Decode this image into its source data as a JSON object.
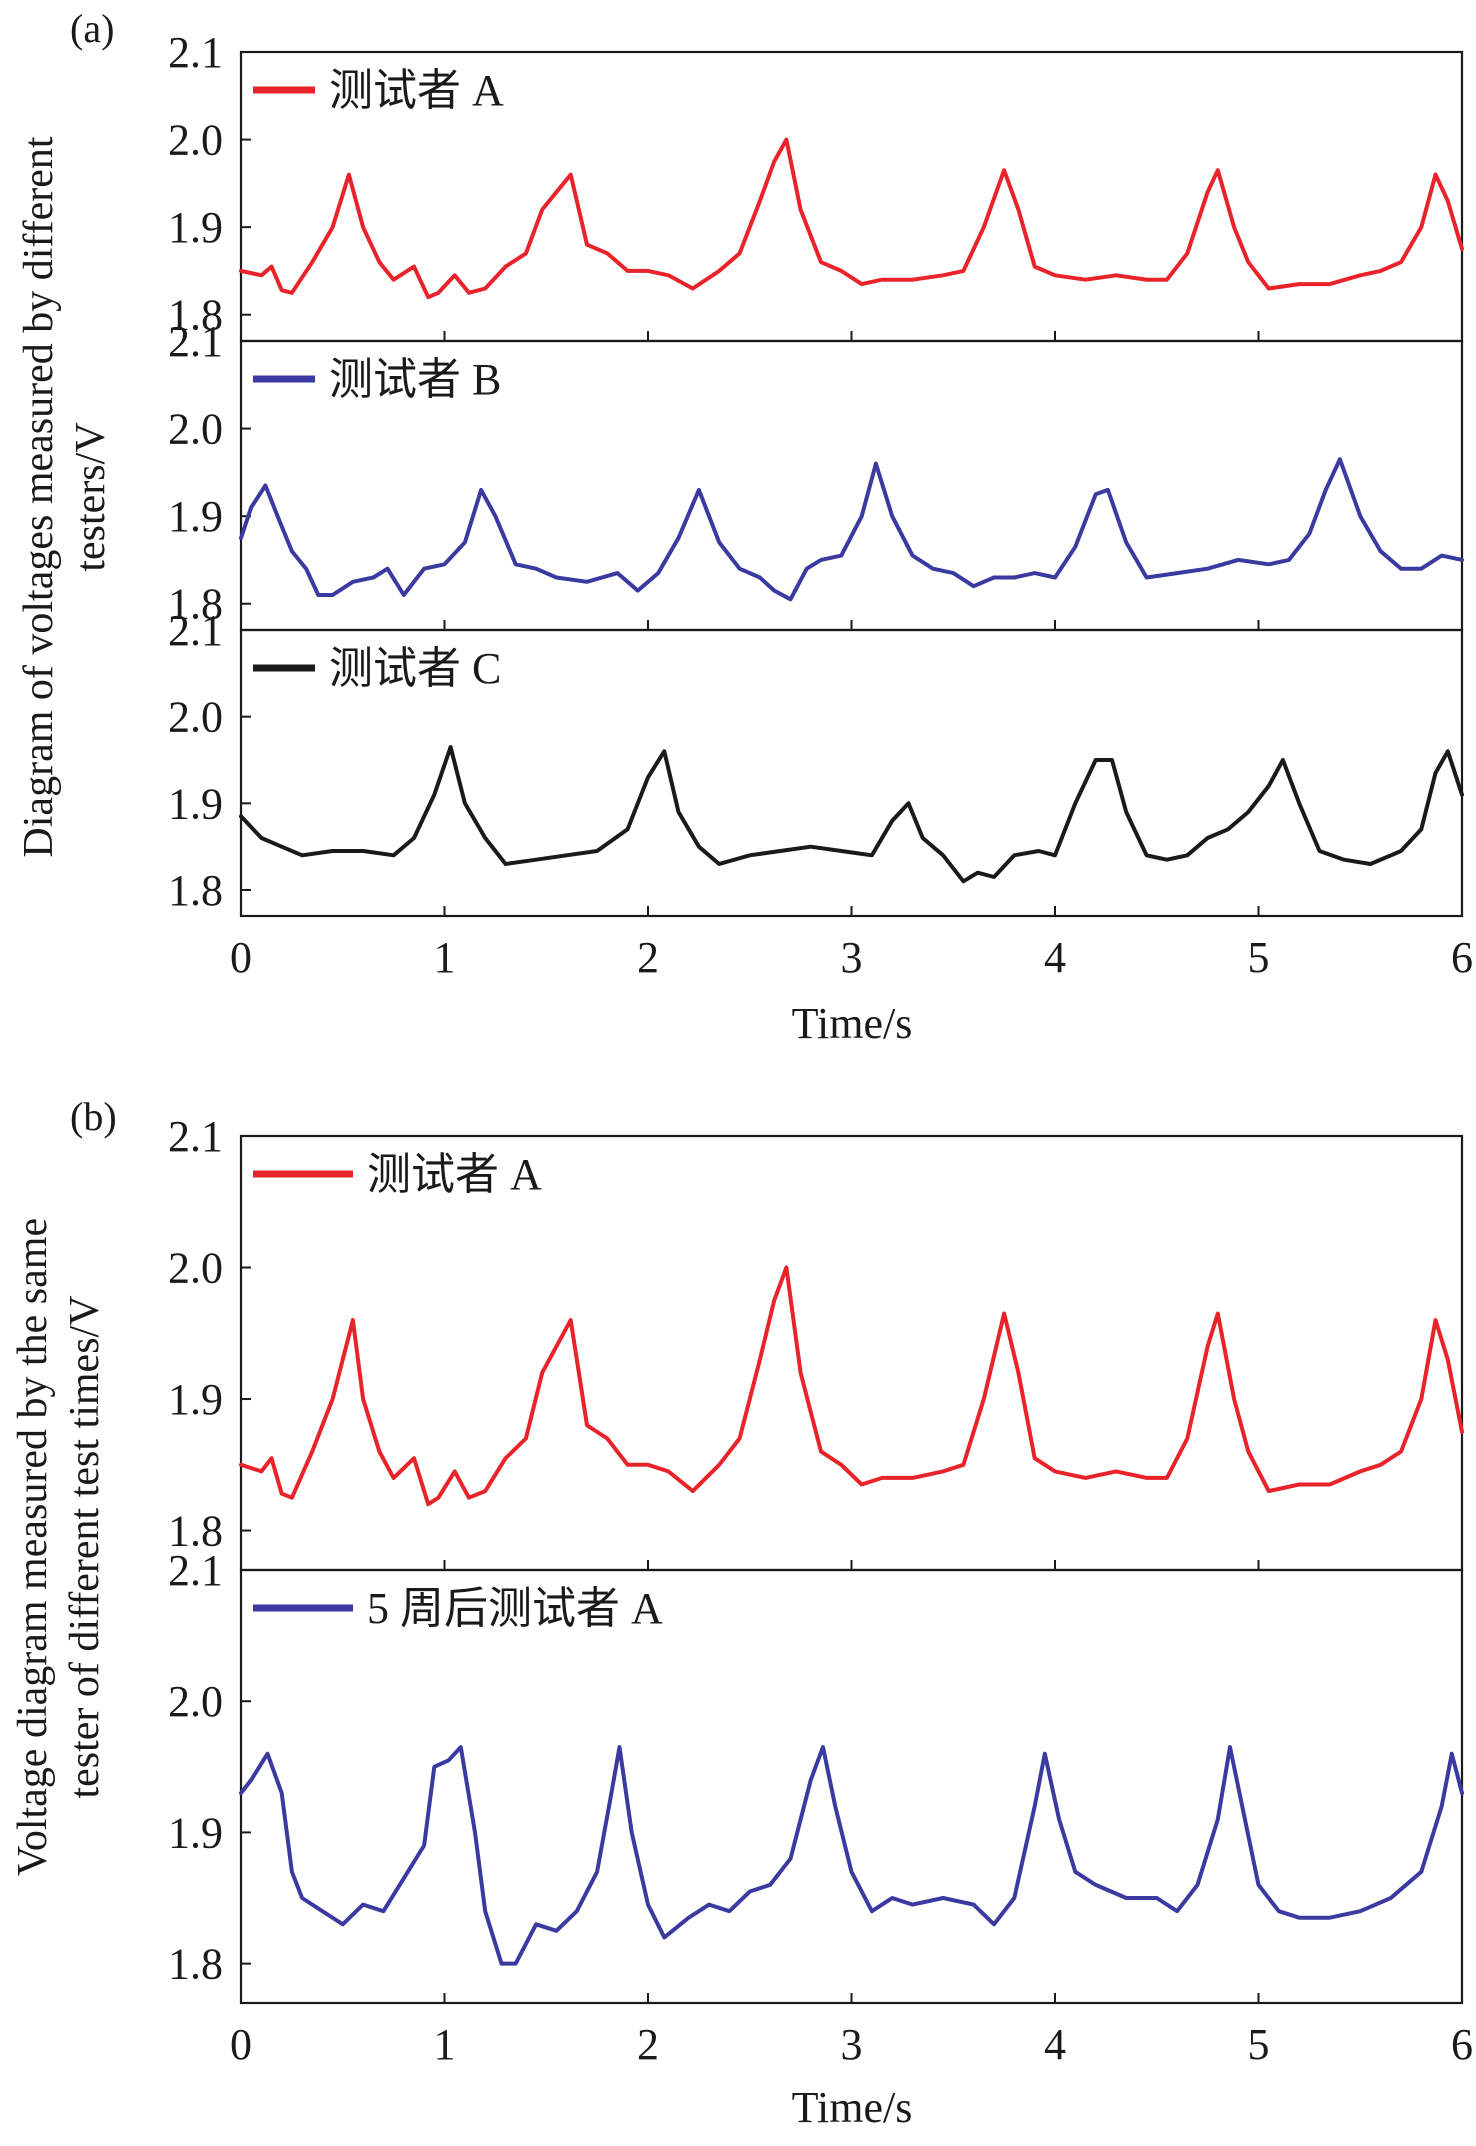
{
  "figure": {
    "panels": [
      {
        "tag": "(a)",
        "ylabel_lines": [
          "Diagram of voltages measured by different",
          "testers/V"
        ],
        "xlabel": "Time/s"
      },
      {
        "tag": "(b)",
        "ylabel_lines": [
          "Voltage diagram measured by the same",
          "tester of different test times/V"
        ],
        "xlabel": "Time/s"
      }
    ]
  },
  "chart_data": [
    {
      "type": "line",
      "panel": "a",
      "subplot": 1,
      "xlim": [
        0,
        6
      ],
      "ylim": [
        1.77,
        2.1
      ],
      "xticks": [
        "0",
        "1",
        "2",
        "3",
        "4",
        "5",
        "6"
      ],
      "yticks": [
        "1.8",
        "1.9",
        "2.0",
        "2.1"
      ],
      "series": [
        {
          "name": "测试者 A",
          "color": "#e8232a",
          "x": [
            0,
            0.1,
            0.15,
            0.2,
            0.25,
            0.35,
            0.45,
            0.53,
            0.6,
            0.68,
            0.75,
            0.85,
            0.92,
            0.97,
            1.05,
            1.12,
            1.2,
            1.3,
            1.4,
            1.48,
            1.55,
            1.62,
            1.7,
            1.8,
            1.9,
            2.0,
            2.1,
            2.22,
            2.35,
            2.45,
            2.55,
            2.62,
            2.68,
            2.75,
            2.85,
            2.95,
            3.05,
            3.15,
            3.3,
            3.45,
            3.55,
            3.65,
            3.75,
            3.82,
            3.9,
            4.0,
            4.15,
            4.3,
            4.45,
            4.55,
            4.65,
            4.75,
            4.8,
            4.88,
            4.95,
            5.05,
            5.2,
            5.35,
            5.5,
            5.6,
            5.7,
            5.8,
            5.87,
            5.93,
            6.0
          ],
          "y": [
            1.85,
            1.845,
            1.855,
            1.828,
            1.825,
            1.86,
            1.9,
            1.96,
            1.9,
            1.86,
            1.84,
            1.855,
            1.82,
            1.825,
            1.845,
            1.825,
            1.83,
            1.855,
            1.87,
            1.92,
            1.94,
            1.96,
            1.88,
            1.87,
            1.85,
            1.85,
            1.845,
            1.83,
            1.85,
            1.87,
            1.93,
            1.975,
            2.0,
            1.92,
            1.86,
            1.85,
            1.835,
            1.84,
            1.84,
            1.845,
            1.85,
            1.9,
            1.965,
            1.92,
            1.855,
            1.845,
            1.84,
            1.845,
            1.84,
            1.84,
            1.87,
            1.94,
            1.965,
            1.9,
            1.86,
            1.83,
            1.835,
            1.835,
            1.845,
            1.85,
            1.86,
            1.9,
            1.96,
            1.93,
            1.875
          ]
        }
      ]
    },
    {
      "type": "line",
      "panel": "a",
      "subplot": 2,
      "xlim": [
        0,
        6
      ],
      "ylim": [
        1.77,
        2.1
      ],
      "xticks": [
        "0",
        "1",
        "2",
        "3",
        "4",
        "5",
        "6"
      ],
      "yticks": [
        "1.8",
        "1.9",
        "2.0",
        "2.1"
      ],
      "series": [
        {
          "name": "测试者 B",
          "color": "#3a3aa0",
          "x": [
            0,
            0.05,
            0.12,
            0.18,
            0.25,
            0.32,
            0.38,
            0.45,
            0.55,
            0.65,
            0.72,
            0.8,
            0.9,
            1.0,
            1.1,
            1.18,
            1.25,
            1.35,
            1.45,
            1.55,
            1.7,
            1.85,
            1.95,
            2.05,
            2.15,
            2.25,
            2.35,
            2.45,
            2.55,
            2.62,
            2.7,
            2.78,
            2.85,
            2.95,
            3.05,
            3.12,
            3.2,
            3.3,
            3.4,
            3.5,
            3.6,
            3.7,
            3.8,
            3.9,
            4.0,
            4.1,
            4.2,
            4.26,
            4.35,
            4.45,
            4.6,
            4.75,
            4.9,
            5.05,
            5.15,
            5.25,
            5.33,
            5.4,
            5.5,
            5.6,
            5.7,
            5.8,
            5.9,
            6.0
          ],
          "y": [
            1.875,
            1.91,
            1.935,
            1.9,
            1.86,
            1.84,
            1.81,
            1.81,
            1.825,
            1.83,
            1.84,
            1.81,
            1.84,
            1.845,
            1.87,
            1.93,
            1.9,
            1.845,
            1.84,
            1.83,
            1.825,
            1.835,
            1.815,
            1.835,
            1.875,
            1.93,
            1.87,
            1.84,
            1.83,
            1.815,
            1.805,
            1.84,
            1.85,
            1.855,
            1.9,
            1.96,
            1.9,
            1.855,
            1.84,
            1.835,
            1.82,
            1.83,
            1.83,
            1.835,
            1.83,
            1.865,
            1.925,
            1.93,
            1.87,
            1.83,
            1.835,
            1.84,
            1.85,
            1.845,
            1.85,
            1.88,
            1.93,
            1.965,
            1.9,
            1.86,
            1.84,
            1.84,
            1.855,
            1.85
          ]
        }
      ]
    },
    {
      "type": "line",
      "panel": "a",
      "subplot": 3,
      "xlim": [
        0,
        6
      ],
      "ylim": [
        1.77,
        2.1
      ],
      "xticks": [
        "0",
        "1",
        "2",
        "3",
        "4",
        "5",
        "6"
      ],
      "yticks": [
        "1.8",
        "1.9",
        "2.0",
        "2.1"
      ],
      "series": [
        {
          "name": "测试者 C",
          "color": "#1a1a1a",
          "x": [
            0,
            0.1,
            0.2,
            0.3,
            0.45,
            0.6,
            0.75,
            0.85,
            0.95,
            1.03,
            1.1,
            1.2,
            1.3,
            1.45,
            1.6,
            1.75,
            1.9,
            2.0,
            2.08,
            2.15,
            2.25,
            2.35,
            2.5,
            2.65,
            2.8,
            2.95,
            3.1,
            3.2,
            3.28,
            3.35,
            3.45,
            3.55,
            3.62,
            3.7,
            3.8,
            3.92,
            4.0,
            4.1,
            4.2,
            4.28,
            4.35,
            4.45,
            4.55,
            4.65,
            4.75,
            4.85,
            4.95,
            5.05,
            5.12,
            5.2,
            5.3,
            5.42,
            5.55,
            5.7,
            5.8,
            5.87,
            5.93,
            6.0
          ],
          "y": [
            1.885,
            1.86,
            1.85,
            1.84,
            1.845,
            1.845,
            1.84,
            1.86,
            1.91,
            1.965,
            1.9,
            1.86,
            1.83,
            1.835,
            1.84,
            1.845,
            1.87,
            1.93,
            1.96,
            1.89,
            1.85,
            1.83,
            1.84,
            1.845,
            1.85,
            1.845,
            1.84,
            1.88,
            1.9,
            1.86,
            1.84,
            1.81,
            1.82,
            1.815,
            1.84,
            1.845,
            1.84,
            1.9,
            1.95,
            1.95,
            1.89,
            1.84,
            1.835,
            1.84,
            1.86,
            1.87,
            1.89,
            1.92,
            1.95,
            1.9,
            1.845,
            1.835,
            1.83,
            1.845,
            1.87,
            1.935,
            1.96,
            1.91
          ]
        }
      ]
    },
    {
      "type": "line",
      "panel": "b",
      "subplot": 1,
      "xlim": [
        0,
        6
      ],
      "ylim": [
        1.77,
        2.1
      ],
      "xticks": [
        "0",
        "1",
        "2",
        "3",
        "4",
        "5",
        "6"
      ],
      "yticks": [
        "1.8",
        "1.9",
        "2.0",
        "2.1"
      ],
      "series": [
        {
          "name": "测试者 A",
          "color": "#e8232a",
          "x": [
            0,
            0.1,
            0.15,
            0.2,
            0.25,
            0.35,
            0.45,
            0.55,
            0.6,
            0.68,
            0.75,
            0.85,
            0.92,
            0.97,
            1.05,
            1.12,
            1.2,
            1.3,
            1.4,
            1.48,
            1.55,
            1.62,
            1.7,
            1.8,
            1.9,
            2.0,
            2.1,
            2.22,
            2.35,
            2.45,
            2.55,
            2.62,
            2.68,
            2.75,
            2.85,
            2.95,
            3.05,
            3.15,
            3.3,
            3.45,
            3.55,
            3.65,
            3.75,
            3.82,
            3.9,
            4.0,
            4.15,
            4.3,
            4.45,
            4.55,
            4.65,
            4.75,
            4.8,
            4.88,
            4.95,
            5.05,
            5.2,
            5.35,
            5.5,
            5.6,
            5.7,
            5.8,
            5.87,
            5.93,
            6.0
          ],
          "y": [
            1.85,
            1.845,
            1.855,
            1.828,
            1.825,
            1.86,
            1.9,
            1.96,
            1.9,
            1.86,
            1.84,
            1.855,
            1.82,
            1.825,
            1.845,
            1.825,
            1.83,
            1.855,
            1.87,
            1.92,
            1.94,
            1.96,
            1.88,
            1.87,
            1.85,
            1.85,
            1.845,
            1.83,
            1.85,
            1.87,
            1.93,
            1.975,
            2.0,
            1.92,
            1.86,
            1.85,
            1.835,
            1.84,
            1.84,
            1.845,
            1.85,
            1.9,
            1.965,
            1.92,
            1.855,
            1.845,
            1.84,
            1.845,
            1.84,
            1.84,
            1.87,
            1.94,
            1.965,
            1.9,
            1.86,
            1.83,
            1.835,
            1.835,
            1.845,
            1.85,
            1.86,
            1.9,
            1.96,
            1.93,
            1.875
          ]
        }
      ]
    },
    {
      "type": "line",
      "panel": "b",
      "subplot": 2,
      "xlim": [
        0,
        6
      ],
      "ylim": [
        1.77,
        2.1
      ],
      "xticks": [
        "0",
        "1",
        "2",
        "3",
        "4",
        "5",
        "6"
      ],
      "yticks": [
        "1.8",
        "1.9",
        "2.0",
        "2.1"
      ],
      "series": [
        {
          "name": "5 周后测试者 A",
          "color": "#3a3aa0",
          "x": [
            0,
            0.05,
            0.13,
            0.2,
            0.25,
            0.3,
            0.4,
            0.5,
            0.6,
            0.7,
            0.8,
            0.9,
            0.95,
            1.02,
            1.08,
            1.15,
            1.2,
            1.28,
            1.35,
            1.45,
            1.55,
            1.65,
            1.75,
            1.82,
            1.86,
            1.92,
            2.0,
            2.08,
            2.2,
            2.3,
            2.4,
            2.5,
            2.6,
            2.7,
            2.8,
            2.86,
            2.92,
            3.0,
            3.1,
            3.2,
            3.3,
            3.45,
            3.6,
            3.7,
            3.8,
            3.9,
            3.95,
            4.02,
            4.1,
            4.2,
            4.35,
            4.5,
            4.6,
            4.7,
            4.8,
            4.86,
            4.92,
            5.0,
            5.1,
            5.2,
            5.35,
            5.5,
            5.65,
            5.8,
            5.9,
            5.95,
            6.0
          ],
          "y": [
            1.93,
            1.94,
            1.96,
            1.93,
            1.87,
            1.85,
            1.84,
            1.83,
            1.845,
            1.84,
            1.865,
            1.89,
            1.95,
            1.955,
            1.965,
            1.9,
            1.84,
            1.8,
            1.8,
            1.83,
            1.825,
            1.84,
            1.87,
            1.93,
            1.965,
            1.9,
            1.845,
            1.82,
            1.835,
            1.845,
            1.84,
            1.855,
            1.86,
            1.88,
            1.94,
            1.965,
            1.92,
            1.87,
            1.84,
            1.85,
            1.845,
            1.85,
            1.845,
            1.83,
            1.85,
            1.92,
            1.96,
            1.91,
            1.87,
            1.86,
            1.85,
            1.85,
            1.84,
            1.86,
            1.91,
            1.965,
            1.92,
            1.86,
            1.84,
            1.835,
            1.835,
            1.84,
            1.85,
            1.87,
            1.92,
            1.96,
            1.93
          ]
        }
      ]
    }
  ]
}
